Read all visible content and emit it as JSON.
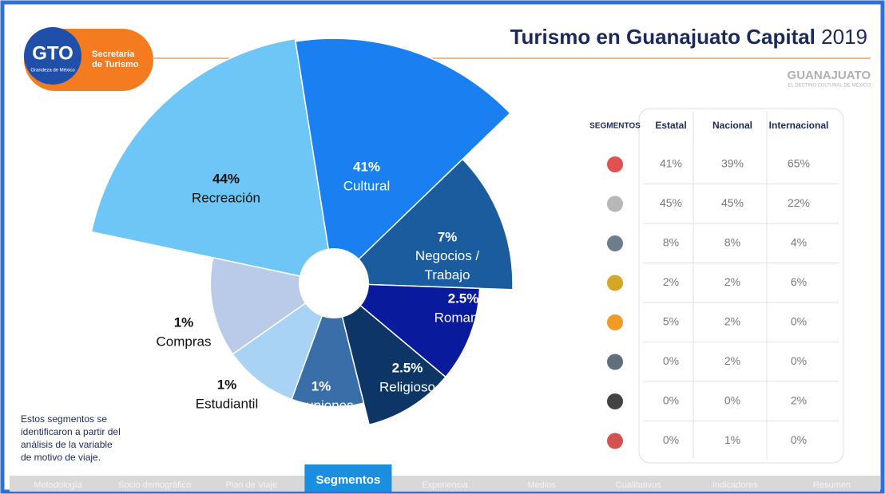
{
  "header": {
    "logo": "GTO",
    "logo_sub": "Grandeza de México",
    "org_lines": [
      "Secretaría",
      "de Turismo"
    ],
    "title": "Turismo en Guanajuato Capital",
    "year": "2019",
    "brand": "GUANAJUATO",
    "brand_sub": "EL DESTINO CULTURAL DE MÉXICO"
  },
  "segments": [
    {
      "name": "Recreación",
      "value": 44,
      "label": "44%",
      "color": "#6ec6f7"
    },
    {
      "name": "Cultural",
      "value": 41,
      "label": "41%",
      "color": "#1a7ff0"
    },
    {
      "name": "Negocios / Trabajo",
      "value": 7,
      "label": "7%",
      "color": "#1b5c9e"
    },
    {
      "name": "Romance",
      "value": 2.5,
      "label": "2.5%",
      "color": "#0a1a9c"
    },
    {
      "name": "Religioso",
      "value": 2.5,
      "label": "2.5%",
      "color": "#0d3566"
    },
    {
      "name": "Reuniones",
      "value": 1,
      "label": "1%",
      "color": "#3a6ea8"
    },
    {
      "name": "Estudiantil",
      "value": 1,
      "label": "1%",
      "color": "#a9d3f5"
    },
    {
      "name": "Compras",
      "value": 1,
      "label": "1%",
      "color": "#b9cbe8"
    }
  ],
  "note": [
    "Estos segmentos se",
    "identificaron a partir del",
    "análisis de la variable",
    "de motivo de viaje."
  ],
  "table": {
    "columns": [
      "SEGMENTOS",
      "Estatal",
      "Nacional",
      "Internacional"
    ],
    "rows": [
      [
        "41%",
        "39%",
        "65%"
      ],
      [
        "45%",
        "45%",
        "22%"
      ],
      [
        "8%",
        "8%",
        "4%"
      ],
      [
        "2%",
        "2%",
        "6%"
      ],
      [
        "5%",
        "2%",
        "0%"
      ],
      [
        "0%",
        "2%",
        "0%"
      ],
      [
        "0%",
        "0%",
        "2%"
      ],
      [
        "0%",
        "1%",
        "0%"
      ]
    ]
  },
  "tabs": [
    "Metodología",
    "Socio demográfico",
    "Plan de Viaje",
    "Segmentos",
    "Experiencia",
    "Medios",
    "Cualitativos",
    "Indicadores",
    "Resumen"
  ],
  "active_tab": 3
}
